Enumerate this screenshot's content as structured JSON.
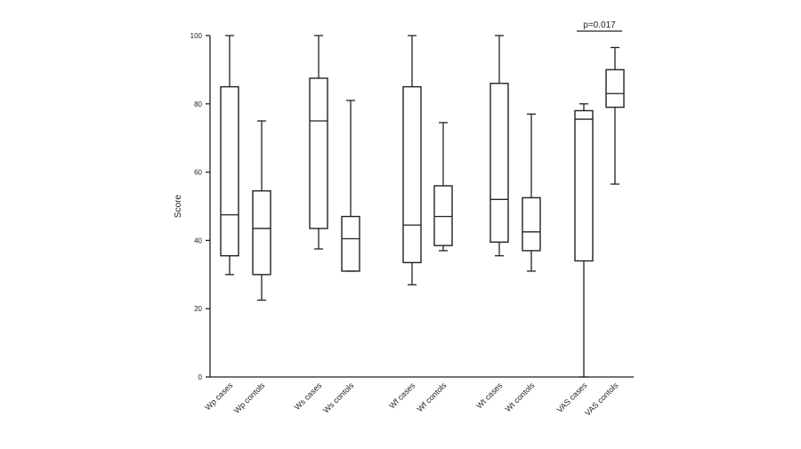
{
  "chart_data": {
    "type": "boxplot",
    "ylabel": "Score",
    "ylim": [
      0,
      100
    ],
    "yticks": [
      0,
      20,
      40,
      60,
      80,
      100
    ],
    "grid": false,
    "categories": [
      "Wp cases",
      "Wp contols",
      "Ws cases",
      "Ws contols",
      "Wf cases",
      "Wf contols",
      "Wt cases",
      "Wt contols",
      "VAS cases",
      "VAS contols"
    ],
    "boxes": [
      {
        "min": 30,
        "q1": 35.5,
        "median": 47.5,
        "q3": 85,
        "max": 100
      },
      {
        "min": 22.5,
        "q1": 30,
        "median": 43.5,
        "q3": 54.5,
        "max": 75
      },
      {
        "min": 37.5,
        "q1": 43.5,
        "median": 75,
        "q3": 87.5,
        "max": 100
      },
      {
        "min": 31,
        "q1": 31,
        "median": 40.5,
        "q3": 47,
        "max": 81
      },
      {
        "min": 27,
        "q1": 33.5,
        "median": 44.5,
        "q3": 85,
        "max": 100
      },
      {
        "min": 37,
        "q1": 38.5,
        "median": 47,
        "q3": 56,
        "max": 74.5
      },
      {
        "min": 35.5,
        "q1": 39.5,
        "median": 52,
        "q3": 86,
        "max": 100
      },
      {
        "min": 31,
        "q1": 37,
        "median": 42.5,
        "q3": 52.5,
        "max": 77
      },
      {
        "min": 0,
        "q1": 34,
        "median": 75.5,
        "q3": 78,
        "max": 80
      },
      {
        "min": 56.5,
        "q1": 79,
        "median": 83,
        "q3": 90,
        "max": 96.5
      }
    ],
    "annotations": [
      {
        "text": "p=0.017",
        "between": [
          8,
          9
        ]
      }
    ]
  }
}
